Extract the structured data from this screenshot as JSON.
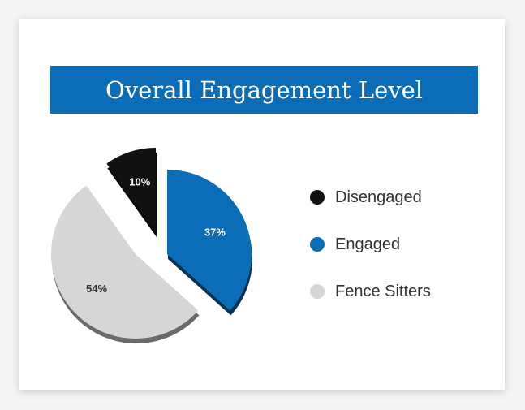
{
  "chart_data": {
    "type": "pie",
    "title": "Overall Engagement Level",
    "slices": [
      {
        "label": "Disengaged",
        "value": 10,
        "display": "10%",
        "color": "#111111",
        "label_color": "#ffffff"
      },
      {
        "label": "Engaged",
        "value": 37,
        "display": "37%",
        "color": "#0b6db7",
        "label_color": "#ffffff"
      },
      {
        "label": "Fence Sitters",
        "value": 54,
        "display": "54%",
        "color": "#d6d6d6",
        "label_color": "#333333"
      }
    ],
    "legend_position": "right",
    "exploded": true
  }
}
